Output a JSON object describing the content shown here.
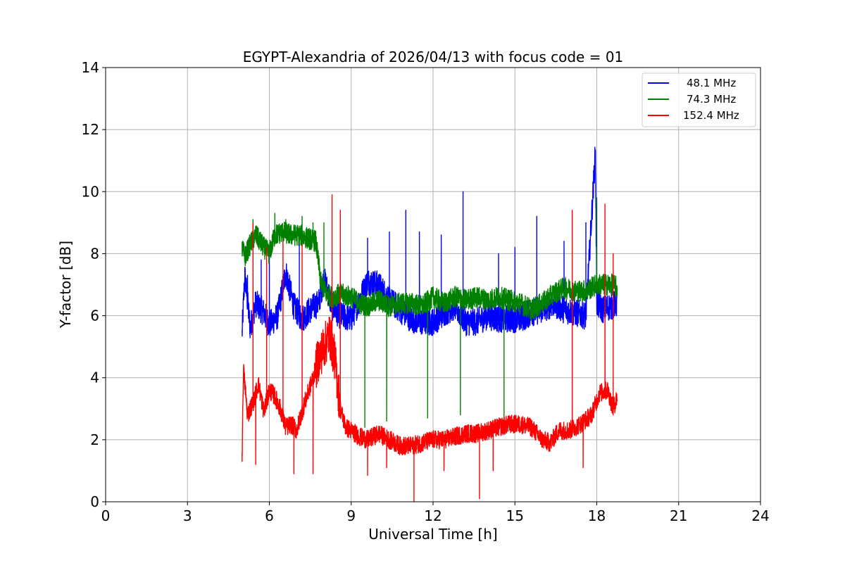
{
  "chart_data": {
    "type": "line",
    "title": "EGYPT-Alexandria of 2026/04/13 with focus code = 01",
    "xlabel": "Universal Time [h]",
    "ylabel": "Y-factor [dB]",
    "xlim": [
      0,
      24
    ],
    "ylim": [
      0,
      14
    ],
    "xticks": [
      0,
      3,
      6,
      9,
      12,
      15,
      18,
      21,
      24
    ],
    "yticks": [
      0,
      2,
      4,
      6,
      8,
      10,
      12,
      14
    ],
    "grid": true,
    "legend_position": "top-right",
    "series": [
      {
        "name": "48.1 MHz",
        "color": "#0000ff",
        "x": [
          5.0,
          5.1,
          5.3,
          5.5,
          5.8,
          6.0,
          6.3,
          6.6,
          6.9,
          7.2,
          7.5,
          7.8,
          8.0,
          8.3,
          8.6,
          9.0,
          9.3,
          9.6,
          10.0,
          10.4,
          10.8,
          11.2,
          11.6,
          12.0,
          12.4,
          12.8,
          13.2,
          13.6,
          14.0,
          14.4,
          14.8,
          15.2,
          15.6,
          16.0,
          16.4,
          16.8,
          17.2,
          17.6,
          17.95,
          18.0,
          18.2,
          18.5,
          18.75
        ],
        "y": [
          5.4,
          7.3,
          5.6,
          6.4,
          6.1,
          5.7,
          6.0,
          7.4,
          6.3,
          5.9,
          6.2,
          6.4,
          7.2,
          6.3,
          6.0,
          5.9,
          6.5,
          7.1,
          7.0,
          6.5,
          6.2,
          5.9,
          5.8,
          5.8,
          6.1,
          6.3,
          5.8,
          5.8,
          6.0,
          5.9,
          5.9,
          5.9,
          6.1,
          6.2,
          6.4,
          6.2,
          6.1,
          6.0,
          11.3,
          6.4,
          6.2,
          6.3,
          6.4
        ],
        "spikes": [
          [
            5.2,
            7.3
          ],
          [
            5.7,
            7.8
          ],
          [
            6.0,
            8.2
          ],
          [
            7.1,
            8.7
          ],
          [
            8.6,
            8.1
          ],
          [
            9.6,
            8.5
          ],
          [
            10.4,
            8.7
          ],
          [
            11.0,
            9.4
          ],
          [
            11.5,
            8.7
          ],
          [
            12.3,
            8.6
          ],
          [
            13.1,
            10.0
          ],
          [
            14.4,
            8.0
          ],
          [
            15.0,
            8.2
          ],
          [
            15.8,
            9.2
          ],
          [
            16.8,
            8.4
          ],
          [
            17.6,
            9.0
          ],
          [
            17.95,
            11.3
          ]
        ]
      },
      {
        "name": "74.3 MHz",
        "color": "#008000",
        "x": [
          5.0,
          5.1,
          5.3,
          5.5,
          5.8,
          6.0,
          6.2,
          6.5,
          6.8,
          7.1,
          7.4,
          7.7,
          7.9,
          8.1,
          8.3,
          8.6,
          9.0,
          9.3,
          9.6,
          10.0,
          10.4,
          10.8,
          11.2,
          11.6,
          12.0,
          12.4,
          12.8,
          13.2,
          13.6,
          14.0,
          14.4,
          14.8,
          15.2,
          15.6,
          16.0,
          16.4,
          16.8,
          17.2,
          17.6,
          18.0,
          18.3,
          18.6,
          18.75
        ],
        "y": [
          8.2,
          7.9,
          8.3,
          8.6,
          8.2,
          8.0,
          8.6,
          8.7,
          8.6,
          8.6,
          8.5,
          8.4,
          7.0,
          6.7,
          6.6,
          6.7,
          6.6,
          6.4,
          6.3,
          6.5,
          6.3,
          6.4,
          6.4,
          6.3,
          6.6,
          6.4,
          6.6,
          6.5,
          6.6,
          6.5,
          6.6,
          6.5,
          6.4,
          6.2,
          6.4,
          6.7,
          6.9,
          6.8,
          6.8,
          7.0,
          7.0,
          7.0,
          6.9
        ],
        "spikes": [
          [
            5.4,
            9.1
          ],
          [
            6.2,
            9.3
          ],
          [
            6.6,
            9.1
          ],
          [
            7.2,
            9.2
          ],
          [
            7.6,
            9.0
          ],
          [
            8.0,
            9.0
          ],
          [
            9.5,
            2.4
          ],
          [
            10.3,
            2.6
          ],
          [
            11.8,
            2.7
          ],
          [
            13.0,
            2.8
          ],
          [
            14.6,
            2.5
          ],
          [
            18.0,
            9.8
          ]
        ]
      },
      {
        "name": "152.4 MHz",
        "color": "#ff0000",
        "x": [
          5.0,
          5.05,
          5.2,
          5.4,
          5.6,
          5.8,
          6.0,
          6.2,
          6.4,
          6.6,
          6.8,
          7.0,
          7.3,
          7.6,
          7.8,
          8.0,
          8.2,
          8.4,
          8.6,
          8.8,
          9.0,
          9.3,
          9.6,
          10.0,
          10.4,
          10.8,
          11.2,
          11.6,
          12.0,
          12.4,
          12.8,
          13.2,
          13.6,
          14.0,
          14.4,
          14.8,
          15.2,
          15.6,
          16.0,
          16.3,
          16.6,
          17.0,
          17.4,
          17.8,
          18.1,
          18.4,
          18.6,
          18.75
        ],
        "y": [
          1.4,
          4.3,
          2.8,
          3.2,
          3.8,
          2.9,
          3.6,
          3.4,
          3.0,
          2.4,
          2.5,
          2.3,
          3.2,
          4.0,
          4.6,
          5.0,
          5.4,
          4.6,
          3.0,
          2.4,
          2.3,
          2.1,
          2.0,
          2.2,
          2.0,
          1.8,
          1.8,
          1.9,
          2.0,
          2.0,
          2.1,
          2.2,
          2.2,
          2.3,
          2.4,
          2.5,
          2.5,
          2.4,
          2.0,
          1.9,
          2.3,
          2.3,
          2.5,
          2.8,
          3.5,
          3.6,
          3.0,
          3.4
        ],
        "spikes": [
          [
            5.0,
            1.3
          ],
          [
            5.4,
            9.0
          ],
          [
            5.5,
            1.2
          ],
          [
            5.9,
            8.2
          ],
          [
            6.5,
            8.4
          ],
          [
            6.9,
            0.9
          ],
          [
            7.2,
            8.3
          ],
          [
            7.6,
            0.9
          ],
          [
            8.3,
            9.9
          ],
          [
            8.6,
            9.4
          ],
          [
            9.6,
            0.85
          ],
          [
            10.3,
            1.1
          ],
          [
            11.3,
            0.0
          ],
          [
            12.4,
            1.0
          ],
          [
            13.7,
            0.1
          ],
          [
            14.2,
            1.0
          ],
          [
            17.1,
            9.4
          ],
          [
            17.5,
            1.1
          ],
          [
            18.3,
            9.6
          ],
          [
            18.6,
            8.0
          ]
        ]
      }
    ]
  }
}
